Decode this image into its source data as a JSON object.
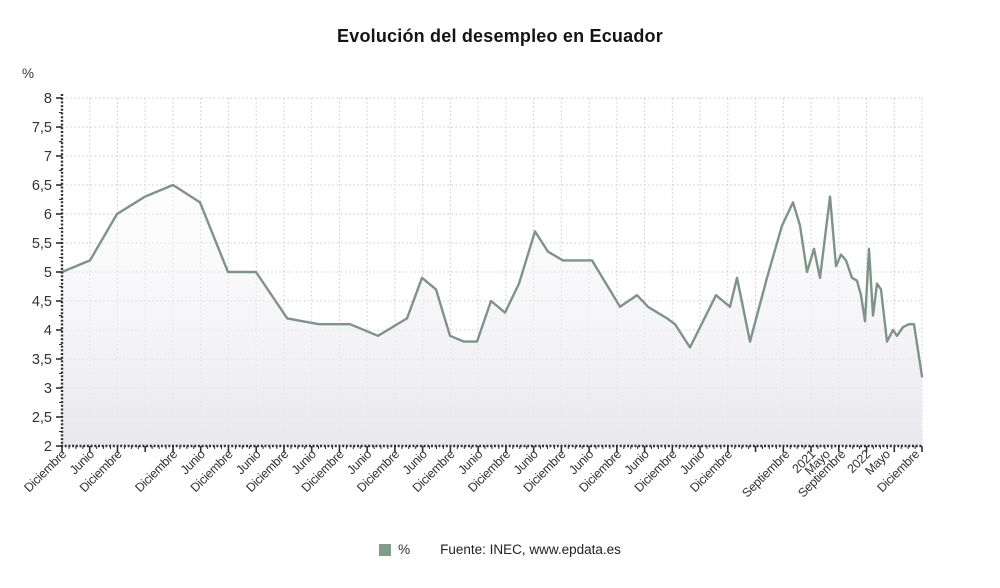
{
  "page": {
    "title": "Evolución del desempleo en Ecuador"
  },
  "unit_label": "%",
  "legend": {
    "label": "%",
    "swatch_color": "#7e9c86"
  },
  "source": "Fuente: INEC, www.epdata.es",
  "chart_data": {
    "type": "line",
    "title": "Evolución del desempleo en Ecuador",
    "xlabel": "",
    "ylabel": "%",
    "ylim": [
      2,
      8
    ],
    "grid": true,
    "legend_position": "bottom",
    "colors": {
      "line": "#7d9489",
      "area_bottom": "#e7e7ec",
      "grid": "#c9c9cd",
      "axis": "#2f2f2f",
      "tick_text": "#333333"
    },
    "y_ticks": [
      {
        "v": 8,
        "label": "8"
      },
      {
        "v": 7.5,
        "label": "7,5"
      },
      {
        "v": 7,
        "label": "7"
      },
      {
        "v": 6.5,
        "label": "6,5"
      },
      {
        "v": 6,
        "label": "6"
      },
      {
        "v": 5.5,
        "label": "5,5"
      },
      {
        "v": 5,
        "label": "5"
      },
      {
        "v": 4.5,
        "label": "4,5"
      },
      {
        "v": 4,
        "label": "4"
      },
      {
        "v": 3.5,
        "label": "3,5"
      },
      {
        "v": 3,
        "label": "3"
      },
      {
        "v": 2.5,
        "label": "2,5"
      },
      {
        "v": 2,
        "label": "2"
      }
    ],
    "x_labels": [
      {
        "text": "Diciembre",
        "pos": 0.0
      },
      {
        "text": "Junio",
        "pos": 0.0323
      },
      {
        "text": "Diciembre",
        "pos": 0.0645
      },
      {
        "text": "Diciembre",
        "pos": 0.129
      },
      {
        "text": "Junio",
        "pos": 0.1613
      },
      {
        "text": "Diciembre",
        "pos": 0.1935
      },
      {
        "text": "Junio",
        "pos": 0.2258
      },
      {
        "text": "Diciembre",
        "pos": 0.2581
      },
      {
        "text": "Junio",
        "pos": 0.2903
      },
      {
        "text": "Diciembre",
        "pos": 0.3226
      },
      {
        "text": "Junio",
        "pos": 0.3548
      },
      {
        "text": "Diciembre",
        "pos": 0.3871
      },
      {
        "text": "Junio",
        "pos": 0.4194
      },
      {
        "text": "Diciembre",
        "pos": 0.4516
      },
      {
        "text": "Junio",
        "pos": 0.4839
      },
      {
        "text": "Diciembre",
        "pos": 0.5161
      },
      {
        "text": "Junio",
        "pos": 0.5484
      },
      {
        "text": "Diciembre",
        "pos": 0.5806
      },
      {
        "text": "Junio",
        "pos": 0.6129
      },
      {
        "text": "Diciembre",
        "pos": 0.6452
      },
      {
        "text": "Junio",
        "pos": 0.6774
      },
      {
        "text": "Diciembre",
        "pos": 0.7097
      },
      {
        "text": "Junio",
        "pos": 0.7419
      },
      {
        "text": "Diciembre",
        "pos": 0.7742
      },
      {
        "text": "Septiembre",
        "pos": 0.841
      },
      {
        "text": "2021",
        "pos": 0.871
      },
      {
        "text": "Mayo",
        "pos": 0.888
      },
      {
        "text": "Septiembre",
        "pos": 0.906
      },
      {
        "text": "2022",
        "pos": 0.935
      },
      {
        "text": "Mayo",
        "pos": 0.958
      },
      {
        "text": "Diciembre",
        "pos": 0.992
      }
    ],
    "series": [
      {
        "name": "%",
        "points": [
          [
            0.0,
            5.0
          ],
          [
            0.0326,
            5.2
          ],
          [
            0.064,
            6.0
          ],
          [
            0.0965,
            6.3
          ],
          [
            0.1291,
            6.5
          ],
          [
            0.1605,
            6.2
          ],
          [
            0.193,
            5.0
          ],
          [
            0.2256,
            5.0
          ],
          [
            0.262,
            4.2
          ],
          [
            0.2988,
            4.1
          ],
          [
            0.3349,
            4.1
          ],
          [
            0.3674,
            3.9
          ],
          [
            0.4012,
            4.2
          ],
          [
            0.4186,
            4.9
          ],
          [
            0.4349,
            4.7
          ],
          [
            0.4512,
            3.9
          ],
          [
            0.4674,
            3.8
          ],
          [
            0.4826,
            3.8
          ],
          [
            0.4988,
            4.5
          ],
          [
            0.5151,
            4.3
          ],
          [
            0.5314,
            4.8
          ],
          [
            0.55,
            5.7
          ],
          [
            0.5651,
            5.35
          ],
          [
            0.5826,
            5.2
          ],
          [
            0.6163,
            5.2
          ],
          [
            0.6488,
            4.4
          ],
          [
            0.6686,
            4.6
          ],
          [
            0.6814,
            4.4
          ],
          [
            0.7035,
            4.2
          ],
          [
            0.7128,
            4.1
          ],
          [
            0.7302,
            3.7
          ],
          [
            0.7605,
            4.6
          ],
          [
            0.7767,
            4.4
          ],
          [
            0.7849,
            4.9
          ],
          [
            0.8,
            3.8
          ],
          [
            0.8198,
            4.9
          ],
          [
            0.8372,
            5.8
          ],
          [
            0.85,
            6.2
          ],
          [
            0.8581,
            5.8
          ],
          [
            0.8663,
            5.0
          ],
          [
            0.8744,
            5.4
          ],
          [
            0.8814,
            4.9
          ],
          [
            0.893,
            6.3
          ],
          [
            0.9,
            5.1
          ],
          [
            0.9058,
            5.3
          ],
          [
            0.9116,
            5.2
          ],
          [
            0.9186,
            4.9
          ],
          [
            0.9244,
            4.85
          ],
          [
            0.9291,
            4.6
          ],
          [
            0.9337,
            4.15
          ],
          [
            0.9384,
            5.4
          ],
          [
            0.943,
            4.25
          ],
          [
            0.9477,
            4.8
          ],
          [
            0.9523,
            4.7
          ],
          [
            0.9593,
            3.8
          ],
          [
            0.9663,
            4.0
          ],
          [
            0.9709,
            3.9
          ],
          [
            0.9779,
            4.05
          ],
          [
            0.9849,
            4.1
          ],
          [
            0.9907,
            4.1
          ],
          [
            1.0,
            3.2
          ]
        ]
      }
    ]
  }
}
